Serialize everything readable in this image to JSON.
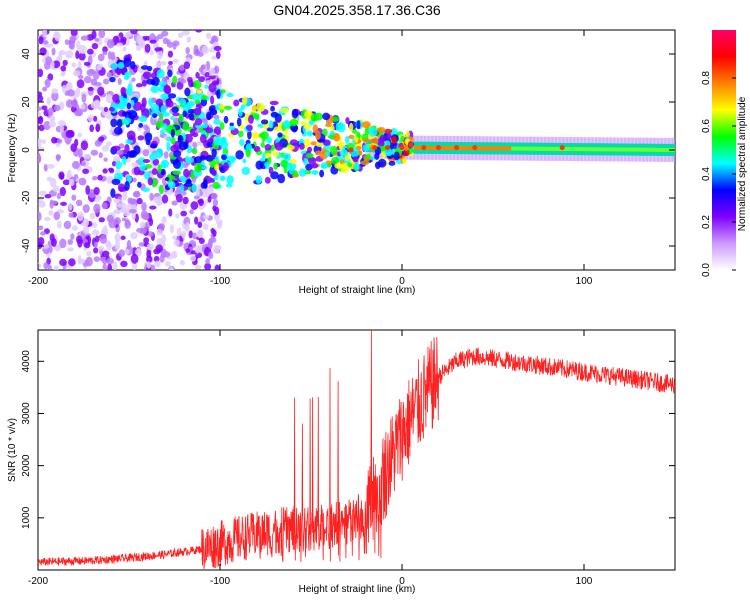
{
  "title": "GN04.2025.358.17.36.C36",
  "chart_data": [
    {
      "type": "heatmap",
      "name": "spectrogram",
      "xlabel": "Height of straight line (km)",
      "ylabel": "Frequency (Hz)",
      "xlim": [
        -200,
        150
      ],
      "ylim": [
        -50,
        50
      ],
      "xticks": [
        -200,
        -100,
        0,
        100
      ],
      "yticks": [
        -40,
        -20,
        0,
        20,
        40
      ],
      "colorbar": {
        "label": "Normalized spectral amplitude",
        "range": [
          0.0,
          1.0
        ],
        "ticks": [
          0.0,
          0.2,
          0.4,
          0.6,
          0.8
        ],
        "tick_labels": [
          "0.0",
          "0.2",
          "0.4",
          "0.6",
          "0.8"
        ],
        "colormap": [
          "#ffffff",
          "#cc99ff",
          "#7f00ff",
          "#0000ff",
          "#00ffff",
          "#00ff00",
          "#ffff00",
          "#ff8000",
          "#ff0000",
          "#ff0066"
        ]
      },
      "band_center_hz": [
        {
          "x": -150,
          "y": 10
        },
        {
          "x": -100,
          "y": 5
        },
        {
          "x": -60,
          "y": 3
        },
        {
          "x": -30,
          "y": 2
        },
        {
          "x": 0,
          "y": 1
        },
        {
          "x": 150,
          "y": 0
        }
      ]
    },
    {
      "type": "line",
      "name": "snr",
      "xlabel": "Height of straight line (km)",
      "ylabel": "SNR (10 * v/v)",
      "xlim": [
        -200,
        150
      ],
      "ylim": [
        0,
        4600
      ],
      "xticks": [
        -200,
        -100,
        0,
        100
      ],
      "yticks": [
        1000,
        2000,
        3000,
        4000
      ],
      "color": "#ff2020",
      "series": [
        {
          "name": "SNR",
          "points": [
            {
              "x": -200,
              "y": 150
            },
            {
              "x": -170,
              "y": 180
            },
            {
              "x": -150,
              "y": 230
            },
            {
              "x": -130,
              "y": 300
            },
            {
              "x": -110,
              "y": 400
            },
            {
              "x": -90,
              "y": 600
            },
            {
              "x": -70,
              "y": 750
            },
            {
              "x": -50,
              "y": 800
            },
            {
              "x": -30,
              "y": 900
            },
            {
              "x": -20,
              "y": 1100
            },
            {
              "x": -10,
              "y": 1800
            },
            {
              "x": 0,
              "y": 2600
            },
            {
              "x": 10,
              "y": 3200
            },
            {
              "x": 20,
              "y": 3700
            },
            {
              "x": 30,
              "y": 4000
            },
            {
              "x": 40,
              "y": 4100
            },
            {
              "x": 60,
              "y": 4000
            },
            {
              "x": 80,
              "y": 3900
            },
            {
              "x": 100,
              "y": 3800
            },
            {
              "x": 120,
              "y": 3700
            },
            {
              "x": 140,
              "y": 3600
            },
            {
              "x": 150,
              "y": 3550
            }
          ]
        }
      ]
    }
  ]
}
